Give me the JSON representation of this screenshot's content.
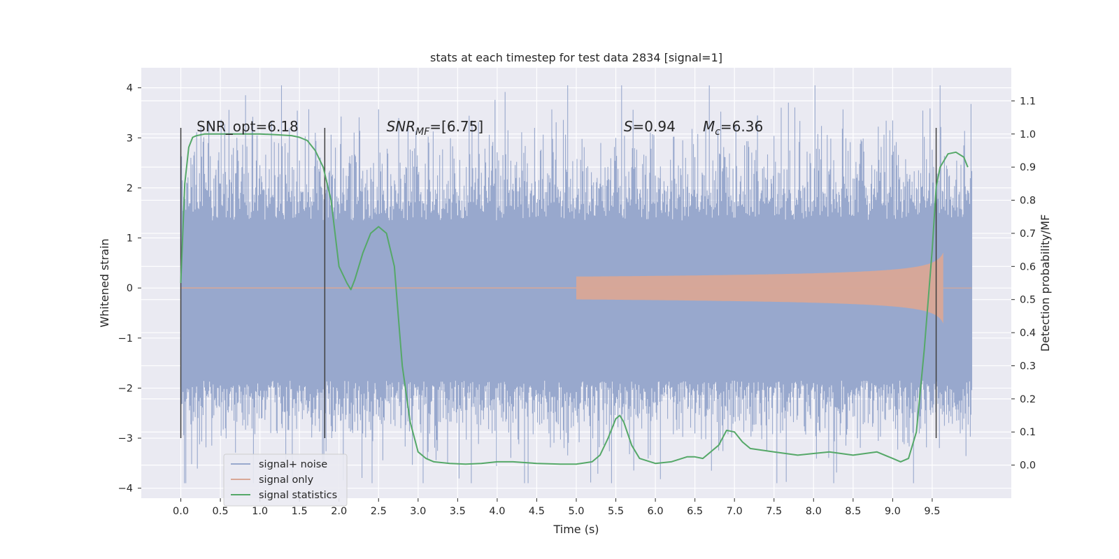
{
  "chart_data": {
    "type": "line",
    "title": "stats at each timestep for test data 2834 [signal=1]",
    "xlabel": "Time (s)",
    "ylabel": "Whitened strain",
    "ylabel_right": "Detection probability/MF",
    "xlim": [
      -0.5,
      10.5
    ],
    "ylim": [
      -4.2,
      4.4
    ],
    "ylim_right": [
      -0.1,
      1.2
    ],
    "x_ticks": [
      "0.0",
      "0.5",
      "1.0",
      "1.5",
      "2.0",
      "2.5",
      "3.0",
      "3.5",
      "4.0",
      "4.5",
      "5.0",
      "5.5",
      "6.0",
      "6.5",
      "7.0",
      "7.5",
      "8.0",
      "8.5",
      "9.0",
      "9.5"
    ],
    "y_ticks": [
      "4",
      "3",
      "2",
      "1",
      "0",
      "−1",
      "−2",
      "−3",
      "−4"
    ],
    "y_ticks_right": [
      "1.1",
      "1.0",
      "0.9",
      "0.8",
      "0.7",
      "0.6",
      "0.5",
      "0.4",
      "0.3",
      "0.2",
      "0.1",
      "0.0"
    ],
    "grid": true,
    "legend_position": "bottom-left",
    "series": [
      {
        "name": "signal+ noise",
        "color": "#98a8cd",
        "kind": "noise",
        "x_range": [
          0,
          10
        ],
        "band": [
          -1.85,
          1.35
        ],
        "peak_envelope": [
          -3.9,
          4.05
        ]
      },
      {
        "name": "signal only",
        "color": "#d9a796",
        "kind": "chirp",
        "x_range": [
          0,
          9.65
        ],
        "amplitude_at_end": 0.75,
        "visible_from": 5.0
      },
      {
        "name": "signal statistics",
        "color": "#55a868",
        "axis": "right",
        "x": [
          0.0,
          0.05,
          0.1,
          0.15,
          0.2,
          0.3,
          0.5,
          0.8,
          1.0,
          1.2,
          1.4,
          1.5,
          1.6,
          1.7,
          1.8,
          1.9,
          2.0,
          2.1,
          2.15,
          2.2,
          2.3,
          2.4,
          2.5,
          2.6,
          2.7,
          2.75,
          2.8,
          2.9,
          3.0,
          3.1,
          3.2,
          3.4,
          3.6,
          3.8,
          4.0,
          4.2,
          4.5,
          4.8,
          5.0,
          5.2,
          5.3,
          5.4,
          5.5,
          5.55,
          5.6,
          5.7,
          5.8,
          6.0,
          6.2,
          6.4,
          6.5,
          6.6,
          6.8,
          6.9,
          7.0,
          7.1,
          7.2,
          7.5,
          7.8,
          8.0,
          8.2,
          8.5,
          8.8,
          9.0,
          9.1,
          9.2,
          9.3,
          9.4,
          9.5,
          9.55,
          9.6,
          9.7,
          9.8,
          9.9,
          9.95
        ],
        "values": [
          0.55,
          0.85,
          0.96,
          0.99,
          0.995,
          1.0,
          1.0,
          1.0,
          1.0,
          0.998,
          0.995,
          0.99,
          0.98,
          0.95,
          0.9,
          0.8,
          0.6,
          0.55,
          0.53,
          0.56,
          0.64,
          0.7,
          0.72,
          0.7,
          0.6,
          0.45,
          0.3,
          0.13,
          0.04,
          0.02,
          0.01,
          0.005,
          0.003,
          0.005,
          0.01,
          0.01,
          0.005,
          0.003,
          0.003,
          0.01,
          0.03,
          0.08,
          0.14,
          0.15,
          0.13,
          0.06,
          0.02,
          0.005,
          0.01,
          0.025,
          0.025,
          0.02,
          0.06,
          0.105,
          0.1,
          0.07,
          0.05,
          0.04,
          0.03,
          0.035,
          0.04,
          0.03,
          0.04,
          0.02,
          0.01,
          0.02,
          0.1,
          0.35,
          0.65,
          0.84,
          0.9,
          0.94,
          0.945,
          0.93,
          0.9
        ]
      }
    ],
    "vertical_markers": [
      0.0,
      1.82,
      9.55
    ],
    "annotations": [
      {
        "text": "SNR_opt=6.18",
        "x": 0.2
      },
      {
        "base": "SNR",
        "sub": "MF",
        "rest": "=[6.75]",
        "x": 2.6
      },
      {
        "base": "S",
        "rest": "=0.94",
        "x": 5.6
      },
      {
        "base": "M",
        "sub": "c",
        "rest": "=6.36",
        "x": 6.6
      }
    ],
    "legend": [
      {
        "label": "signal+ noise",
        "color": "#98a8cd"
      },
      {
        "label": "signal only",
        "color": "#d9a796"
      },
      {
        "label": "signal statistics",
        "color": "#55a868"
      }
    ],
    "colors": {
      "plot_bg": "#eaeaf2",
      "grid": "#ffffff",
      "text": "#262626",
      "marker_line": "#3f3f3f"
    }
  }
}
